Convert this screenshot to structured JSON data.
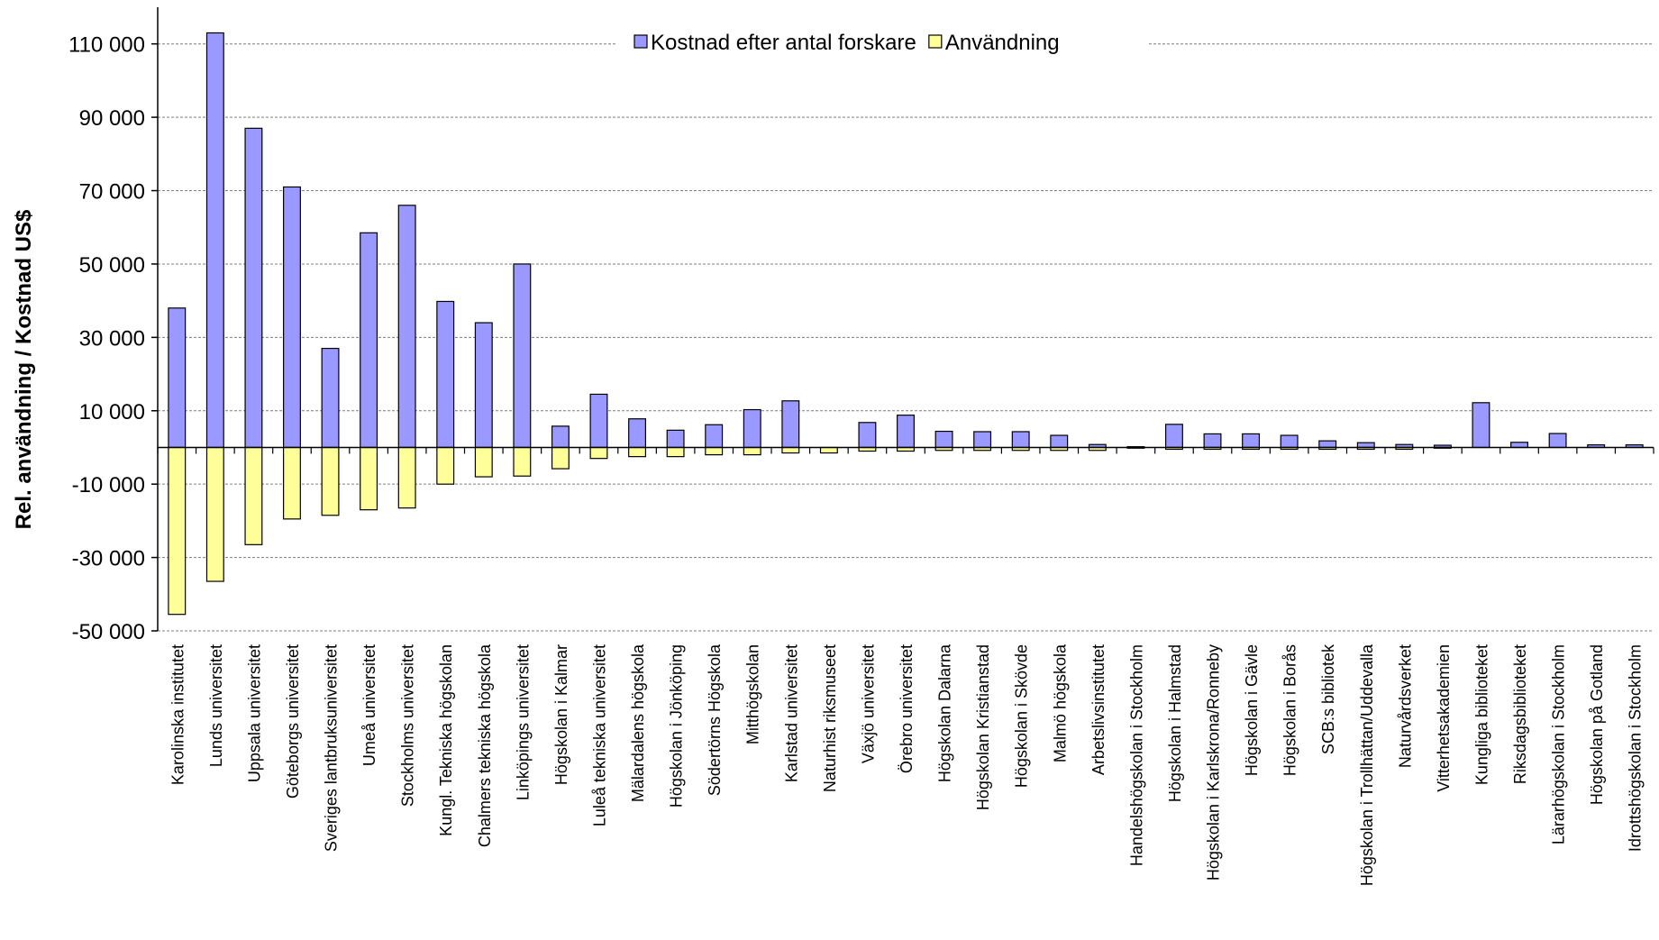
{
  "chart_data": {
    "type": "bar",
    "title": "",
    "xlabel": "",
    "ylabel": "Rel. användning / Kostnad US$",
    "ylim": [
      -50000,
      120000
    ],
    "yticks": [
      -50000,
      -30000,
      -10000,
      10000,
      30000,
      50000,
      70000,
      90000,
      110000
    ],
    "ytick_labels": [
      "-50 000",
      "-30 000",
      "-10 000",
      "10 000",
      "30 000",
      "50 000",
      "70 000",
      "90 000",
      "110 000"
    ],
    "grid": true,
    "legend_placement": "top-center",
    "categories": [
      "Karolinska institutet",
      "Lunds universitet",
      "Uppsala universitet",
      "Göteborgs universitet",
      "Sveriges lantbruksuniversitet",
      "Umeå universitet",
      "Stockholms universitet",
      "Kungl. Tekniska högskolan",
      "Chalmers tekniska högskola",
      "Linköpings universitet",
      "Högskolan i Kalmar",
      "Luleå tekniska universitet",
      "Mälardalens högskola",
      "Högskolan i Jönköping",
      "Södertörns Högskola",
      "Mitthögskolan",
      "Karlstad universitet",
      "Naturhist riksmuseet",
      "Växjö universitet",
      "Örebro universitet",
      "Högskolan Dalarna",
      "Högskolan Kristianstad",
      "Högskolan i Skövde",
      "Malmö högskola",
      "Arbetslivsinstitutet",
      "Handelshögskolan i Stockholm",
      "Högskolan i Halmstad",
      "Högskolan i Karlskrona/Ronneby",
      "Högskolan i Gävle",
      "Högskolan i Borås",
      "SCB:s bibliotek",
      "Högskolan i Trollhättan/Uddevalla",
      "Naturvårdsverket",
      "Vitterhetsakademien",
      "Kungliga biblioteket",
      "Riksdagsbiblioteket",
      "Lärarhögskolan i Stockholm",
      "Högskolan på Gotland",
      "Idrottshögskolan i Stockholm"
    ],
    "series": [
      {
        "name": "Kostnad efter antal forskare",
        "color": "#9999ff",
        "values": [
          38000,
          113000,
          87000,
          71000,
          27000,
          58500,
          66000,
          39800,
          34000,
          50000,
          5800,
          14500,
          7800,
          4700,
          6200,
          10300,
          12700,
          0,
          6800,
          8800,
          4400,
          4300,
          4300,
          3300,
          800,
          200,
          6300,
          3700,
          3700,
          3300,
          1800,
          1300,
          800,
          600,
          12200,
          1400,
          3800,
          700,
          700
        ]
      },
      {
        "name": "Användning",
        "color": "#ffff99",
        "values": [
          -45500,
          -36500,
          -26500,
          -19500,
          -18500,
          -17000,
          -16500,
          -10000,
          -8000,
          -7800,
          -5800,
          -3000,
          -2500,
          -2500,
          -2000,
          -2000,
          -1500,
          -1500,
          -1000,
          -1000,
          -800,
          -800,
          -800,
          -800,
          -800,
          -200,
          -500,
          -500,
          -500,
          -500,
          -500,
          -500,
          -500,
          -200,
          0,
          0,
          0,
          0,
          0
        ]
      }
    ]
  }
}
